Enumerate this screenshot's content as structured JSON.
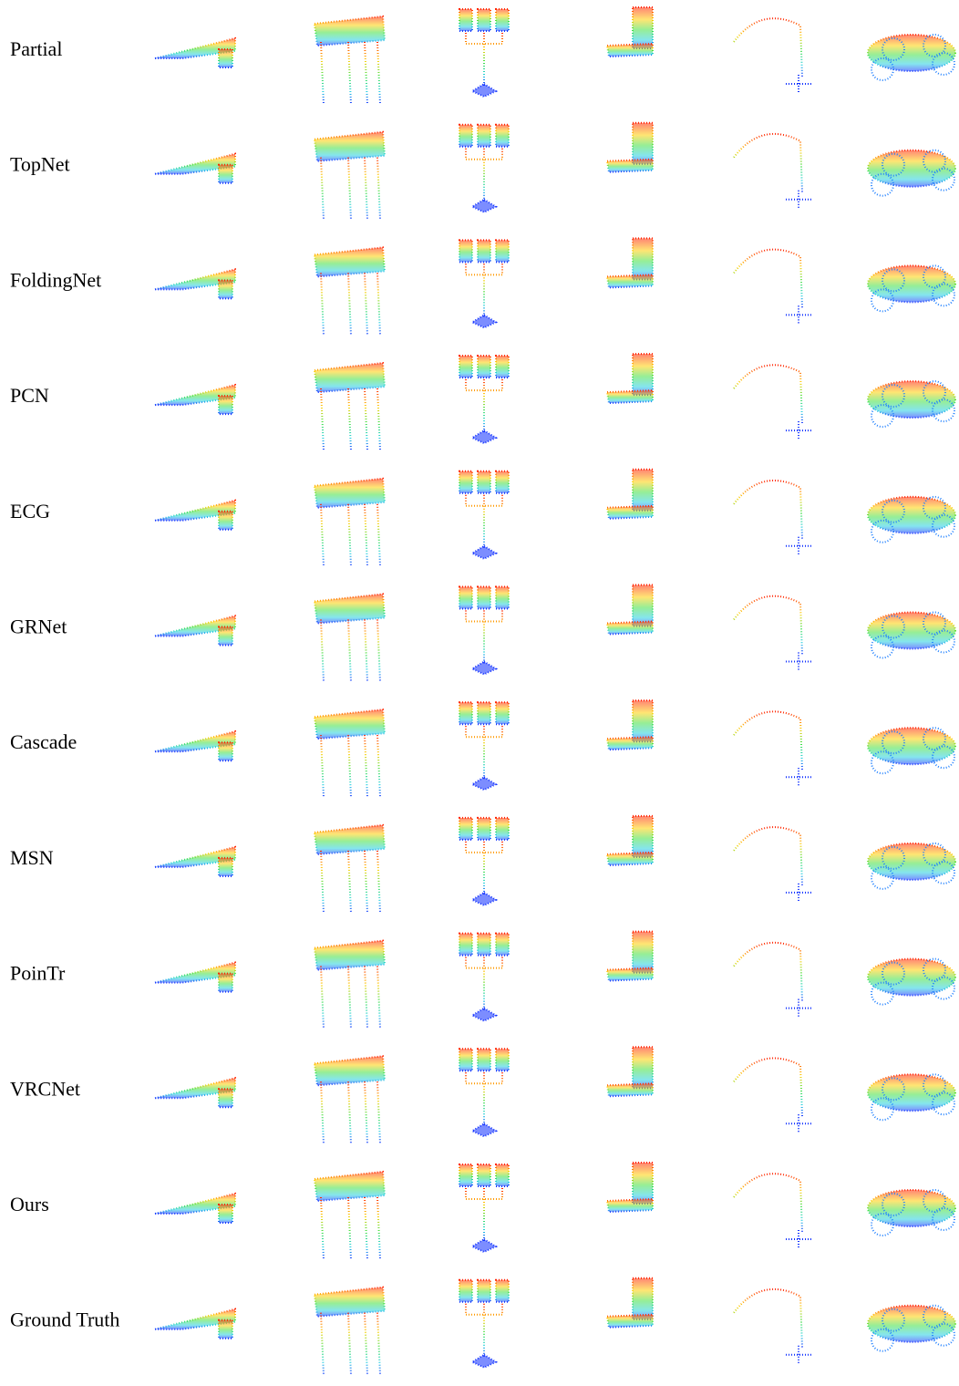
{
  "rows": [
    {
      "label": "Partial"
    },
    {
      "label": "TopNet"
    },
    {
      "label": "FoldingNet"
    },
    {
      "label": "PCN"
    },
    {
      "label": "ECG"
    },
    {
      "label": "GRNet"
    },
    {
      "label": "Cascade"
    },
    {
      "label": "MSN"
    },
    {
      "label": "PoinTr"
    },
    {
      "label": "VRCNet"
    },
    {
      "label": "Ours"
    },
    {
      "label": "Ground Truth"
    }
  ]
}
